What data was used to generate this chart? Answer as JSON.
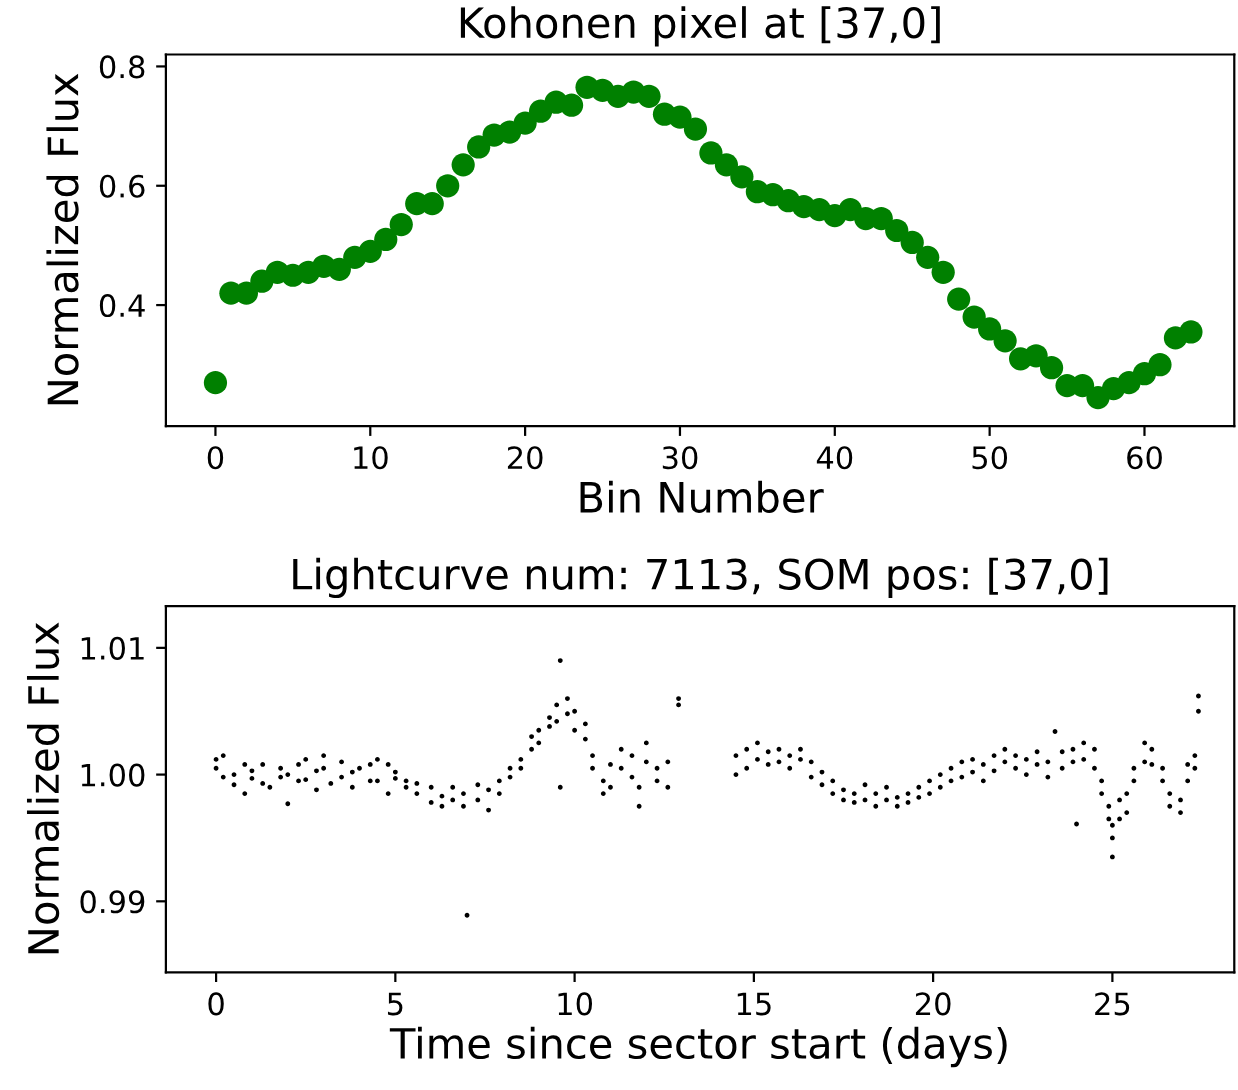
{
  "chart_data": [
    {
      "type": "scatter",
      "title": "Kohonen pixel at [37,0]",
      "xlabel": "Bin Number",
      "ylabel": "Normalized Flux",
      "marker": "circle",
      "color": "#008000",
      "x": [
        0,
        1,
        2,
        3,
        4,
        5,
        6,
        7,
        8,
        9,
        10,
        11,
        12,
        13,
        14,
        15,
        16,
        17,
        18,
        19,
        20,
        21,
        22,
        23,
        24,
        25,
        26,
        27,
        28,
        29,
        30,
        31,
        32,
        33,
        34,
        35,
        36,
        37,
        38,
        39,
        40,
        41,
        42,
        43,
        44,
        45,
        46,
        47,
        48,
        49,
        50,
        51,
        52,
        53,
        54,
        55,
        56,
        57,
        58,
        59,
        60,
        61,
        62,
        63
      ],
      "values": [
        0.27,
        0.42,
        0.42,
        0.44,
        0.455,
        0.45,
        0.455,
        0.465,
        0.46,
        0.48,
        0.49,
        0.51,
        0.535,
        0.57,
        0.57,
        0.6,
        0.635,
        0.665,
        0.685,
        0.69,
        0.705,
        0.725,
        0.74,
        0.735,
        0.765,
        0.76,
        0.75,
        0.757,
        0.75,
        0.72,
        0.715,
        0.695,
        0.655,
        0.635,
        0.615,
        0.59,
        0.585,
        0.575,
        0.565,
        0.56,
        0.55,
        0.56,
        0.545,
        0.545,
        0.525,
        0.505,
        0.48,
        0.455,
        0.41,
        0.38,
        0.36,
        0.34,
        0.31,
        0.315,
        0.295,
        0.265,
        0.265,
        0.245,
        0.26,
        0.27,
        0.285,
        0.3,
        0.345,
        0.355
      ],
      "xlim": [
        -3.2,
        65.8
      ],
      "ylim": [
        0.197,
        0.82
      ],
      "xticks": [
        0,
        10,
        20,
        30,
        40,
        50,
        60
      ],
      "yticks": [
        0.4,
        0.6,
        0.8
      ]
    },
    {
      "type": "scatter",
      "title": "Lightcurve num: 7113, SOM pos: [37,0]",
      "xlabel": "Time since sector start (days)",
      "ylabel": "Normalized Flux",
      "marker": "circle",
      "color": "#000000",
      "x": [
        0.0,
        0.0,
        0.2,
        0.2,
        0.5,
        0.5,
        0.8,
        0.8,
        1.0,
        1.0,
        1.3,
        1.3,
        1.5,
        1.8,
        1.8,
        2.0,
        2.0,
        2.3,
        2.3,
        2.5,
        2.5,
        2.8,
        2.8,
        3.0,
        3.0,
        3.2,
        3.5,
        3.5,
        3.8,
        3.8,
        4.0,
        4.3,
        4.3,
        4.5,
        4.5,
        4.8,
        4.8,
        5.0,
        5.0,
        5.3,
        5.3,
        5.6,
        5.6,
        6.0,
        6.0,
        6.3,
        6.3,
        6.6,
        6.6,
        6.9,
        6.9,
        7.0,
        7.3,
        7.3,
        7.6,
        7.6,
        7.9,
        7.9,
        8.2,
        8.2,
        8.5,
        8.5,
        8.8,
        8.8,
        9.0,
        9.0,
        9.3,
        9.3,
        9.5,
        9.5,
        9.6,
        9.6,
        9.8,
        9.8,
        10.0,
        10.0,
        10.3,
        10.3,
        10.5,
        10.5,
        10.8,
        10.8,
        11.0,
        11.0,
        11.3,
        11.3,
        11.6,
        11.6,
        11.8,
        11.8,
        12.0,
        12.0,
        12.3,
        12.3,
        12.6,
        12.6,
        12.9,
        12.9,
        14.5,
        14.5,
        14.8,
        14.8,
        15.1,
        15.1,
        15.4,
        15.4,
        15.7,
        15.7,
        16.0,
        16.0,
        16.3,
        16.3,
        16.6,
        16.6,
        16.9,
        16.9,
        17.2,
        17.2,
        17.5,
        17.5,
        17.8,
        17.8,
        18.1,
        18.1,
        18.4,
        18.4,
        18.7,
        18.7,
        19.0,
        19.0,
        19.3,
        19.3,
        19.6,
        19.6,
        19.9,
        19.9,
        20.2,
        20.2,
        20.5,
        20.5,
        20.8,
        20.8,
        21.1,
        21.1,
        21.4,
        21.4,
        21.7,
        21.7,
        22.0,
        22.0,
        22.3,
        22.3,
        22.6,
        22.6,
        22.9,
        22.9,
        23.2,
        23.2,
        23.4,
        23.6,
        23.6,
        23.9,
        23.9,
        24.0,
        24.2,
        24.2,
        24.5,
        24.5,
        24.7,
        24.7,
        24.9,
        24.9,
        25.0,
        25.0,
        25.0,
        25.2,
        25.2,
        25.4,
        25.4,
        25.6,
        25.6,
        25.9,
        25.9,
        26.1,
        26.1,
        26.4,
        26.4,
        26.6,
        26.6,
        26.9,
        26.9,
        27.1,
        27.1,
        27.3,
        27.3,
        27.4,
        27.4
      ],
      "values": [
        1.0012,
        1.0005,
        1.0015,
        0.9998,
        1.0,
        0.9992,
        1.0008,
        0.9985,
        0.9997,
        1.0003,
        0.9993,
        1.0008,
        0.999,
        0.9998,
        1.0005,
        0.9977,
        1.0,
        1.0008,
        0.9995,
        1.0012,
        0.9996,
        0.9988,
        1.0003,
        1.0005,
        1.0015,
        0.9993,
        1.001,
        0.9998,
        1.0002,
        0.999,
        1.0005,
        0.9995,
        1.0008,
        1.0012,
        0.9995,
        1.0008,
        0.9985,
        0.9997,
        1.0002,
        0.999,
        0.9995,
        0.9985,
        0.9993,
        0.9978,
        0.999,
        0.9983,
        0.9975,
        0.999,
        0.998,
        0.9985,
        0.9975,
        0.9889,
        0.998,
        0.9992,
        0.9972,
        0.9988,
        0.9985,
        0.9995,
        0.9998,
        1.0005,
        1.0012,
        1.0005,
        1.002,
        1.003,
        1.0035,
        1.0025,
        1.0045,
        1.0038,
        1.0055,
        1.0042,
        1.009,
        0.999,
        1.006,
        1.0048,
        1.005,
        1.0035,
        1.004,
        1.0028,
        1.0015,
        1.0005,
        0.9995,
        0.9985,
        1.0008,
        0.999,
        1.002,
        1.0005,
        1.0015,
        0.9998,
        0.999,
        0.9975,
        1.0025,
        1.001,
        1.0005,
        0.9995,
        0.999,
        1.001,
        1.006,
        1.0055,
        1.0,
        1.0015,
        1.002,
        1.0005,
        1.0012,
        1.0025,
        1.0008,
        1.0018,
        1.002,
        1.001,
        1.0015,
        1.0005,
        1.002,
        1.0012,
        1.001,
        0.9998,
        1.0002,
        0.9992,
        0.9995,
        0.9985,
        0.9988,
        0.998,
        0.9985,
        0.9978,
        0.998,
        0.9992,
        0.9975,
        0.9985,
        0.998,
        0.999,
        0.9982,
        0.9975,
        0.9985,
        0.9978,
        0.999,
        0.9982,
        0.9995,
        0.9985,
        1.0,
        0.999,
        1.0005,
        0.9995,
        1.001,
        0.9998,
        1.0002,
        1.0012,
        1.0008,
        0.9995,
        1.0015,
        1.0003,
        1.001,
        1.002,
        1.0005,
        1.0015,
        1.0012,
        1.0,
        1.0008,
        1.0018,
        1.001,
        0.9998,
        1.0034,
        1.0005,
        1.0018,
        1.002,
        1.001,
        0.9961,
        1.0025,
        1.0012,
        1.002,
        1.0005,
        0.9995,
        0.9985,
        0.9975,
        0.9965,
        0.996,
        0.995,
        0.9935,
        0.998,
        0.9965,
        0.9985,
        0.997,
        1.0005,
        0.9995,
        1.001,
        1.0025,
        1.002,
        1.0008,
        1.0005,
        0.9995,
        0.9985,
        0.9975,
        0.997,
        0.998,
        0.9995,
        1.0008,
        1.0015,
        1.0005,
        1.0062,
        1.005
      ],
      "xlim": [
        -1.4,
        28.4
      ],
      "ylim": [
        0.9844,
        1.0133
      ],
      "xticks": [
        0,
        5,
        10,
        15,
        20,
        25
      ],
      "yticks": [
        {
          "value": 0.99,
          "label": "0.99"
        },
        {
          "value": 1.0,
          "label": "1.00"
        },
        {
          "value": 1.01,
          "label": "1.01"
        }
      ]
    }
  ]
}
